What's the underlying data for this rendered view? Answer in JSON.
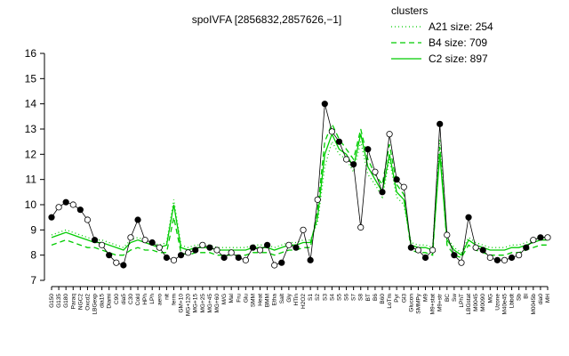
{
  "chart_data": {
    "type": "line",
    "title": "spoIVFA [2856832,2857626,−1]",
    "legend_title": "clusters",
    "legend": "top-right",
    "ylim": [
      7,
      16
    ],
    "yticks": [
      7,
      8,
      9,
      10,
      11,
      12,
      13,
      14,
      15,
      16
    ],
    "categories": [
      "G150",
      "G135",
      "G180",
      "Paraq",
      "NGC2",
      "Oxcd2",
      "LBGexp",
      "dia15",
      "Diami",
      "C90",
      "dia5",
      "C30",
      "Cold",
      "HPh",
      "LPh",
      "aero",
      "nit",
      "ferm",
      "GM+10",
      "MG+120",
      "MG+15",
      "MG+25",
      "MG+45",
      "MG+60",
      "M/G",
      "Mal",
      "Fru",
      "Glu",
      "SMM",
      "Heat",
      "BMM",
      "Etha",
      "Salt",
      "Gly",
      "HTin",
      "H2O2",
      "S1",
      "S2",
      "S3",
      "S4",
      "S5",
      "S6",
      "S7",
      "S8",
      "BT",
      "B6",
      "B60",
      "LoTm",
      "Pyr",
      "Gl3",
      "Glucon",
      "SMMPy",
      "M9",
      "M9+stat",
      "M9+str",
      "BC",
      "Sw",
      "LPhT",
      "LBGstat",
      "M0045",
      "M0090",
      "MG",
      "Uzone",
      "M40e45",
      "Lbbdt",
      "Sb",
      "Bl",
      "M0045b",
      "dia0",
      "MH"
    ],
    "points": {
      "color": "#000000",
      "values": [
        9.5,
        9.9,
        10.1,
        10.0,
        9.8,
        9.4,
        8.6,
        8.4,
        8.0,
        7.7,
        7.6,
        8.7,
        9.4,
        8.6,
        8.5,
        8.3,
        7.9,
        7.8,
        8.0,
        8.1,
        8.2,
        8.4,
        8.3,
        8.2,
        7.9,
        8.1,
        7.9,
        7.8,
        8.3,
        8.2,
        8.4,
        7.6,
        7.7,
        8.4,
        8.3,
        9.0,
        7.8,
        10.2,
        14.0,
        12.9,
        12.5,
        11.8,
        11.6,
        9.1,
        12.2,
        11.3,
        10.5,
        12.8,
        11.0,
        10.7,
        8.3,
        8.2,
        7.9,
        8.2,
        13.2,
        8.8,
        8.0,
        7.7,
        9.5,
        8.3,
        8.2,
        7.9,
        7.8,
        7.8,
        7.9,
        8.0,
        8.3,
        8.6,
        8.7,
        8.7
      ]
    },
    "series": [
      {
        "name": "A21 size: 254",
        "color": "#00cc00",
        "dash": "1,3",
        "values": [
          8.8,
          8.9,
          9.0,
          8.9,
          8.8,
          8.7,
          8.6,
          8.6,
          8.5,
          8.4,
          8.3,
          8.6,
          8.7,
          8.6,
          8.5,
          8.4,
          8.5,
          10.2,
          8.4,
          8.3,
          8.4,
          8.4,
          8.4,
          8.3,
          8.3,
          8.3,
          8.3,
          8.3,
          8.4,
          8.4,
          8.4,
          8.3,
          8.4,
          8.5,
          8.5,
          8.6,
          8.6,
          9.3,
          11.5,
          12.5,
          12.0,
          11.8,
          11.3,
          12.5,
          11.2,
          10.8,
          10.3,
          11.8,
          10.3,
          10.0,
          8.5,
          8.4,
          8.4,
          8.3,
          12.6,
          8.7,
          8.3,
          8.1,
          8.7,
          8.5,
          8.4,
          8.3,
          8.3,
          8.3,
          8.4,
          8.4,
          8.5,
          8.6,
          8.7,
          8.7
        ]
      },
      {
        "name": "B4 size: 709",
        "color": "#00cc00",
        "dash": "6,4",
        "values": [
          8.4,
          8.5,
          8.6,
          8.5,
          8.4,
          8.3,
          8.3,
          8.2,
          8.1,
          8.0,
          8.0,
          8.2,
          8.3,
          8.2,
          8.2,
          8.1,
          8.1,
          9.5,
          8.1,
          8.0,
          8.1,
          8.1,
          8.1,
          8.0,
          8.0,
          8.0,
          8.0,
          8.0,
          8.1,
          8.1,
          8.1,
          8.0,
          8.1,
          8.2,
          8.2,
          8.3,
          8.3,
          9.8,
          12.5,
          13.2,
          12.6,
          12.2,
          11.8,
          13.0,
          11.8,
          11.2,
          10.8,
          12.4,
          10.8,
          10.4,
          8.2,
          8.1,
          8.1,
          8.0,
          12.3,
          8.4,
          8.0,
          7.9,
          8.4,
          8.2,
          8.1,
          8.0,
          8.0,
          8.0,
          8.1,
          8.1,
          8.2,
          8.3,
          8.4,
          8.4
        ]
      },
      {
        "name": "C2 size: 897",
        "color": "#00cc00",
        "dash": "",
        "values": [
          8.7,
          8.8,
          8.9,
          8.8,
          8.7,
          8.6,
          8.5,
          8.5,
          8.4,
          8.3,
          8.2,
          8.5,
          8.6,
          8.5,
          8.4,
          8.3,
          8.4,
          10.0,
          8.3,
          8.2,
          8.3,
          8.3,
          8.3,
          8.2,
          8.2,
          8.2,
          8.2,
          8.2,
          8.3,
          8.3,
          8.3,
          8.2,
          8.3,
          8.4,
          8.4,
          8.5,
          8.5,
          9.5,
          12.0,
          12.8,
          12.2,
          12.0,
          11.5,
          12.8,
          11.5,
          11.0,
          10.5,
          12.0,
          10.5,
          10.2,
          8.4,
          8.3,
          8.3,
          8.2,
          12.0,
          8.6,
          8.2,
          8.0,
          8.6,
          8.4,
          8.3,
          8.2,
          8.2,
          8.2,
          8.3,
          8.3,
          8.4,
          8.5,
          8.6,
          8.6
        ]
      }
    ]
  }
}
